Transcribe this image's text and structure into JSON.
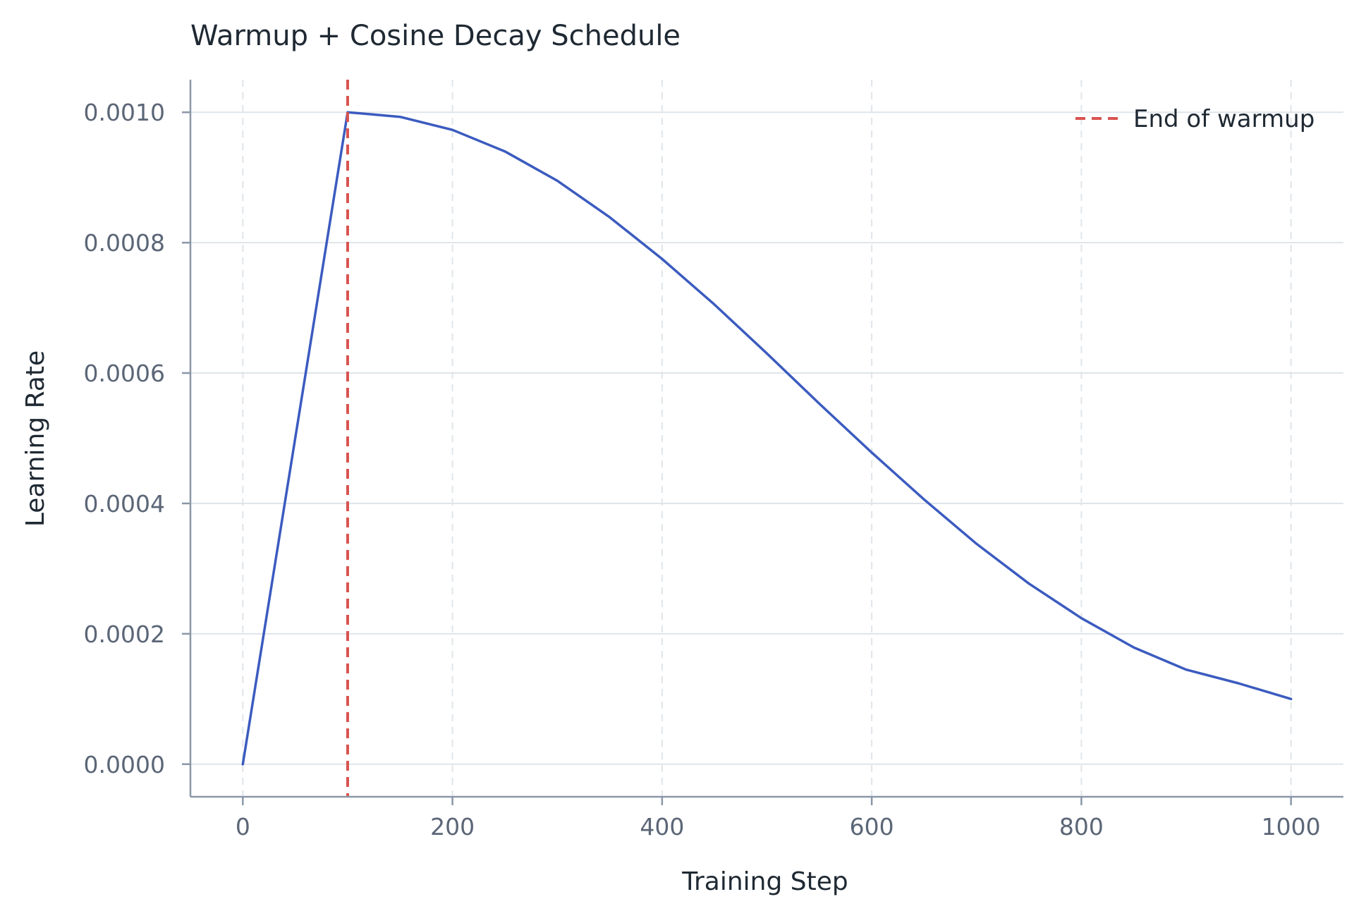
{
  "chart_data": {
    "type": "line",
    "title": "Warmup + Cosine Decay Schedule",
    "xlabel": "Training Step",
    "ylabel": "Learning Rate",
    "xlim": [
      -50,
      1050
    ],
    "ylim": [
      -5e-05,
      0.00105
    ],
    "xticks": [
      0,
      200,
      400,
      600,
      800,
      1000
    ],
    "xtick_labels": [
      "0",
      "200",
      "400",
      "600",
      "800",
      "1000"
    ],
    "yticks": [
      0.0,
      0.0002,
      0.0004,
      0.0006,
      0.0008,
      0.001
    ],
    "ytick_labels": [
      "0.0000",
      "0.0002",
      "0.0004",
      "0.0006",
      "0.0008",
      "0.0010"
    ],
    "grid": true,
    "legend_position": "top-right",
    "series": [
      {
        "color": "#3b5bbf",
        "x": [
          0,
          100,
          150,
          200,
          250,
          300,
          350,
          400,
          450,
          500,
          550,
          600,
          650,
          700,
          750,
          800,
          850,
          900,
          950,
          1000
        ],
        "y": [
          0.0,
          0.001,
          0.000993,
          0.000973,
          0.00094,
          0.000895,
          0.000839,
          0.000775,
          0.000705,
          0.00063,
          0.000553,
          0.000478,
          0.000406,
          0.000338,
          0.000277,
          0.000224,
          0.000179,
          0.000145,
          0.000124,
          0.0001
        ]
      }
    ],
    "reference_lines": [
      {
        "name": "End of warmup",
        "orientation": "vertical",
        "x": 100,
        "color": "#d9534f",
        "style": "dashed"
      }
    ]
  }
}
